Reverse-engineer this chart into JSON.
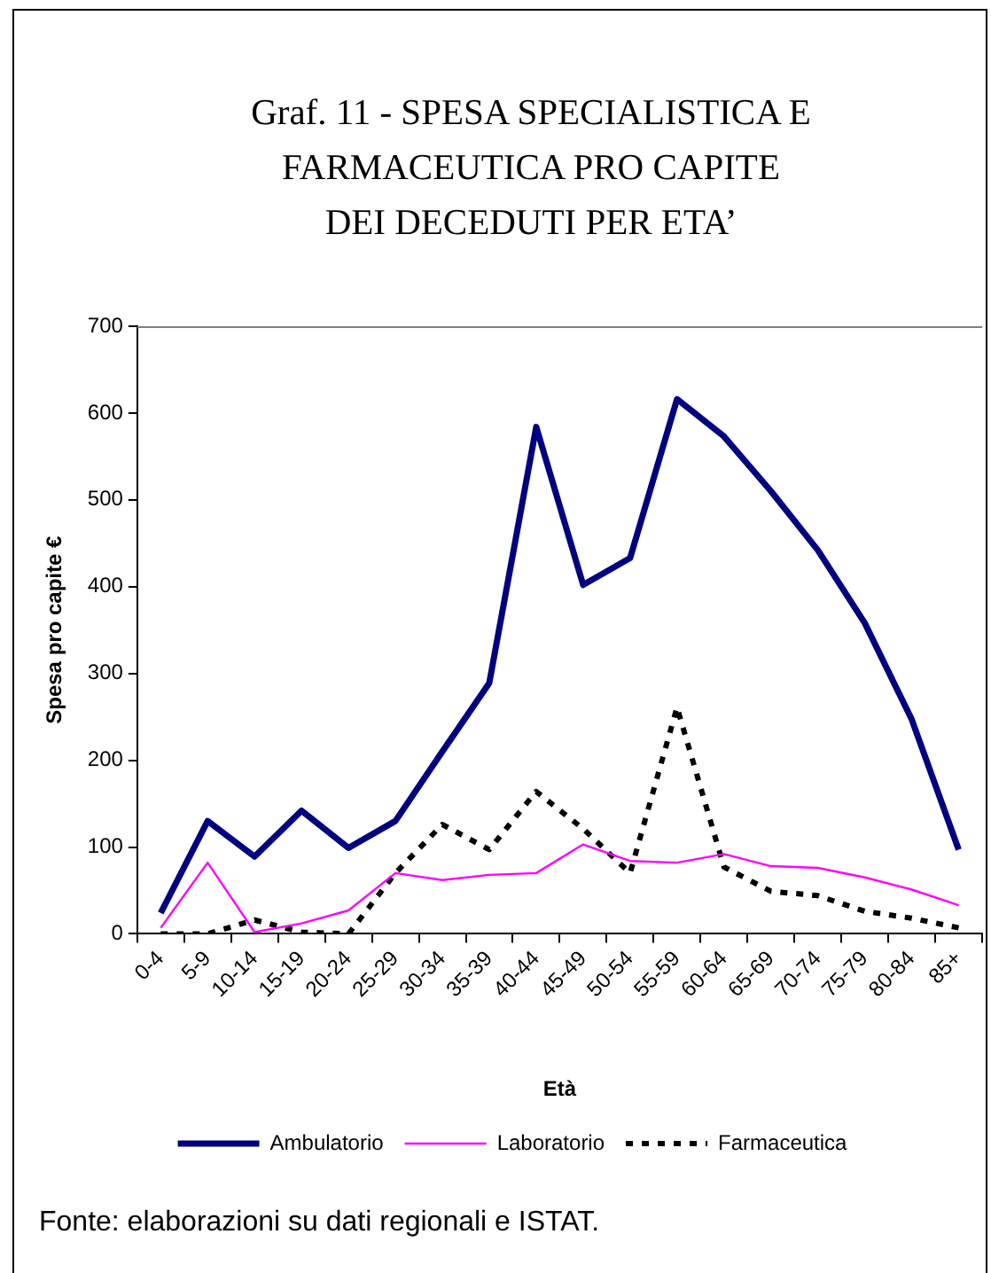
{
  "chart_data": {
    "type": "line",
    "title": "Graf. 11 - SPESA SPECIALISTICA E\nFARMACEUTICA PRO CAPITE\nDEI DECEDUTI PER ETA’",
    "xlabel": "Età",
    "ylabel": "Spesa pro capite €",
    "categories": [
      "0-4",
      "5-9",
      "10-14",
      "15-19",
      "20-24",
      "25-29",
      "30-34",
      "35-39",
      "40-44",
      "45-49",
      "50-54",
      "55-59",
      "60-64",
      "65-69",
      "70-74",
      "75-79",
      "80-84",
      "85+"
    ],
    "series": [
      {
        "name": "Ambulatorio",
        "color": "#000080",
        "line_style": "solid",
        "values": [
          24,
          130,
          89,
          142,
          99,
          130,
          210,
          289,
          584,
          402,
          433,
          616,
          573,
          510,
          442,
          358,
          247,
          97
        ]
      },
      {
        "name": "Laboratorio",
        "color": "#ff00ff",
        "line_style": "solid",
        "values": [
          7,
          82,
          2,
          12,
          27,
          70,
          62,
          68,
          70,
          103,
          84,
          82,
          92,
          78,
          76,
          65,
          51,
          33
        ]
      },
      {
        "name": "Farmaceutica",
        "color": "#000000",
        "line_style": "dashed",
        "values": [
          0,
          0,
          16,
          2,
          0,
          70,
          126,
          97,
          164,
          121,
          70,
          261,
          77,
          49,
          44,
          26,
          18,
          7
        ]
      }
    ],
    "ylim": [
      0,
      700
    ],
    "yticks": [
      0,
      100,
      200,
      300,
      400,
      500,
      600,
      700
    ],
    "grid": false,
    "legend": "bottom",
    "marker": "none",
    "annotations": [
      "Fonte: elaborazioni su dati regionali e ISTAT."
    ]
  }
}
